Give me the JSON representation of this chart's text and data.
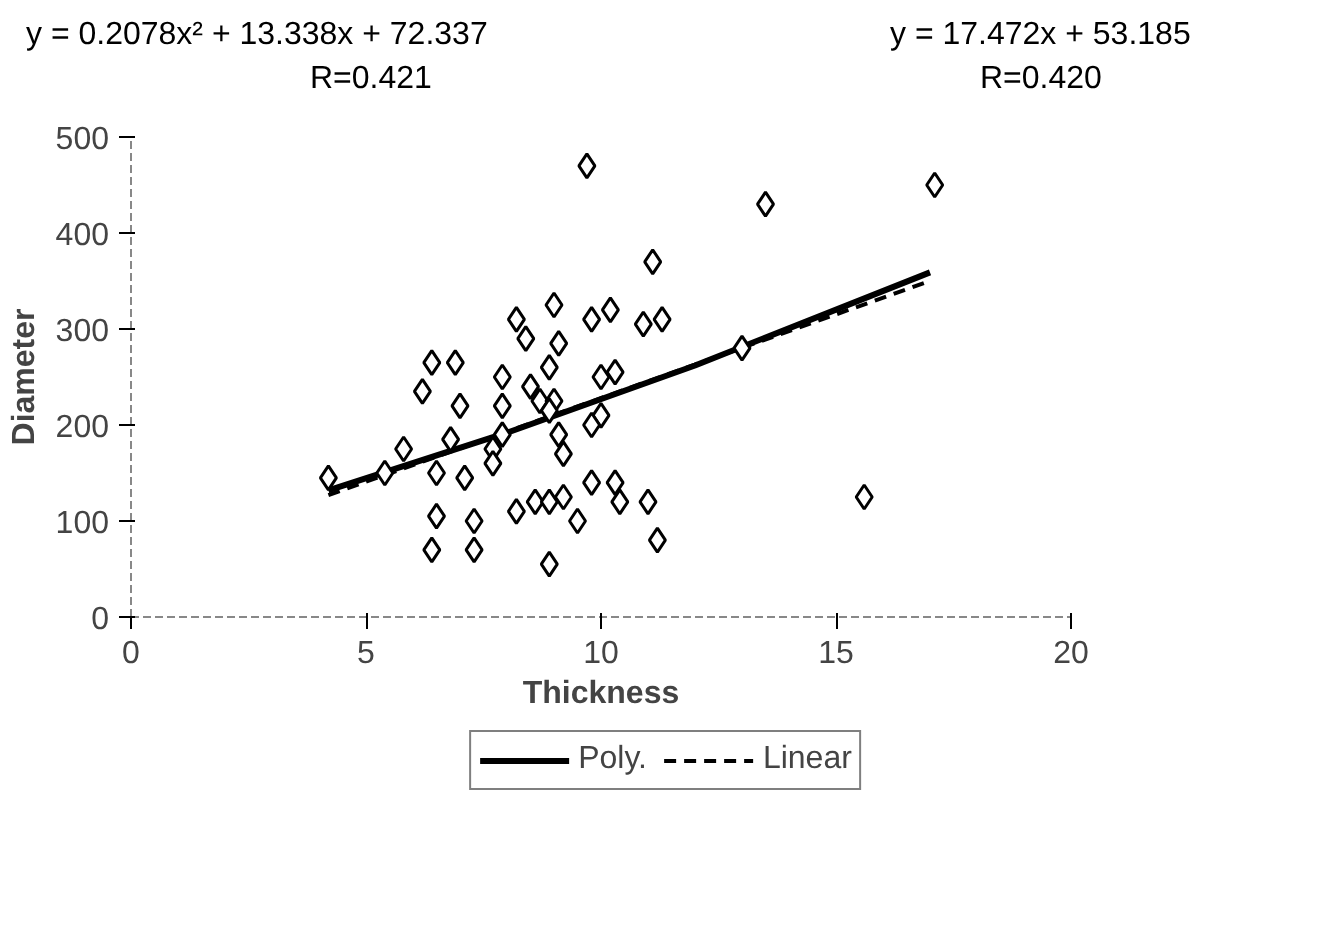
{
  "chart_data": {
    "type": "scatter",
    "xlabel": "Thickness",
    "ylabel": "Diameter",
    "annotations": [
      "y = 0.2078x² + 13.338x + 72.337",
      "R=0.421",
      "y = 17.472x + 53.185",
      "R=0.420"
    ],
    "xlim": [
      0,
      20
    ],
    "ylim": [
      0,
      500
    ],
    "xticks": [
      0,
      5,
      10,
      15,
      20
    ],
    "yticks": [
      0,
      100,
      200,
      300,
      400,
      500
    ],
    "grid": false,
    "legend": "bottom",
    "series": [
      {
        "marker": "diamond",
        "color": "#000000",
        "x": [
          4.2,
          5.4,
          5.8,
          6.4,
          6.9,
          6.2,
          7.0,
          6.8,
          6.5,
          7.1,
          6.5,
          6.4,
          7.3,
          7.3,
          7.9,
          7.9,
          7.9,
          7.7,
          7.7,
          8.2,
          8.4,
          9.0,
          9.1,
          8.9,
          8.5,
          8.7,
          9.0,
          8.9,
          9.1,
          9.2,
          8.2,
          8.6,
          8.9,
          9.2,
          8.9,
          9.5,
          9.7,
          9.8,
          10.2,
          10.0,
          10.3,
          10.0,
          9.8,
          9.8,
          10.3,
          10.4,
          11.0,
          11.2,
          11.1,
          10.9,
          11.3,
          13.5,
          17.1,
          13.0,
          15.6
        ],
        "values": [
          145,
          150,
          175,
          265,
          265,
          235,
          220,
          185,
          150,
          145,
          105,
          70,
          100,
          70,
          250,
          220,
          190,
          175,
          160,
          310,
          290,
          325,
          285,
          260,
          240,
          225,
          225,
          215,
          190,
          170,
          110,
          120,
          120,
          125,
          55,
          100,
          470,
          310,
          320,
          250,
          255,
          210,
          200,
          140,
          140,
          120,
          120,
          80,
          370,
          305,
          310,
          430,
          450,
          280,
          125
        ]
      },
      {
        "type": "line",
        "name": "Poly.",
        "color": "#000000",
        "line_style": "solid",
        "x": [
          4.2,
          8,
          12,
          17
        ],
        "values": [
          132,
          192,
          262,
          359
        ]
      },
      {
        "type": "line",
        "name": "Linear",
        "color": "#000000",
        "line_style": "dashed",
        "x": [
          4.2,
          8,
          12,
          17
        ],
        "values": [
          127,
          193,
          263,
          350
        ]
      }
    ]
  }
}
